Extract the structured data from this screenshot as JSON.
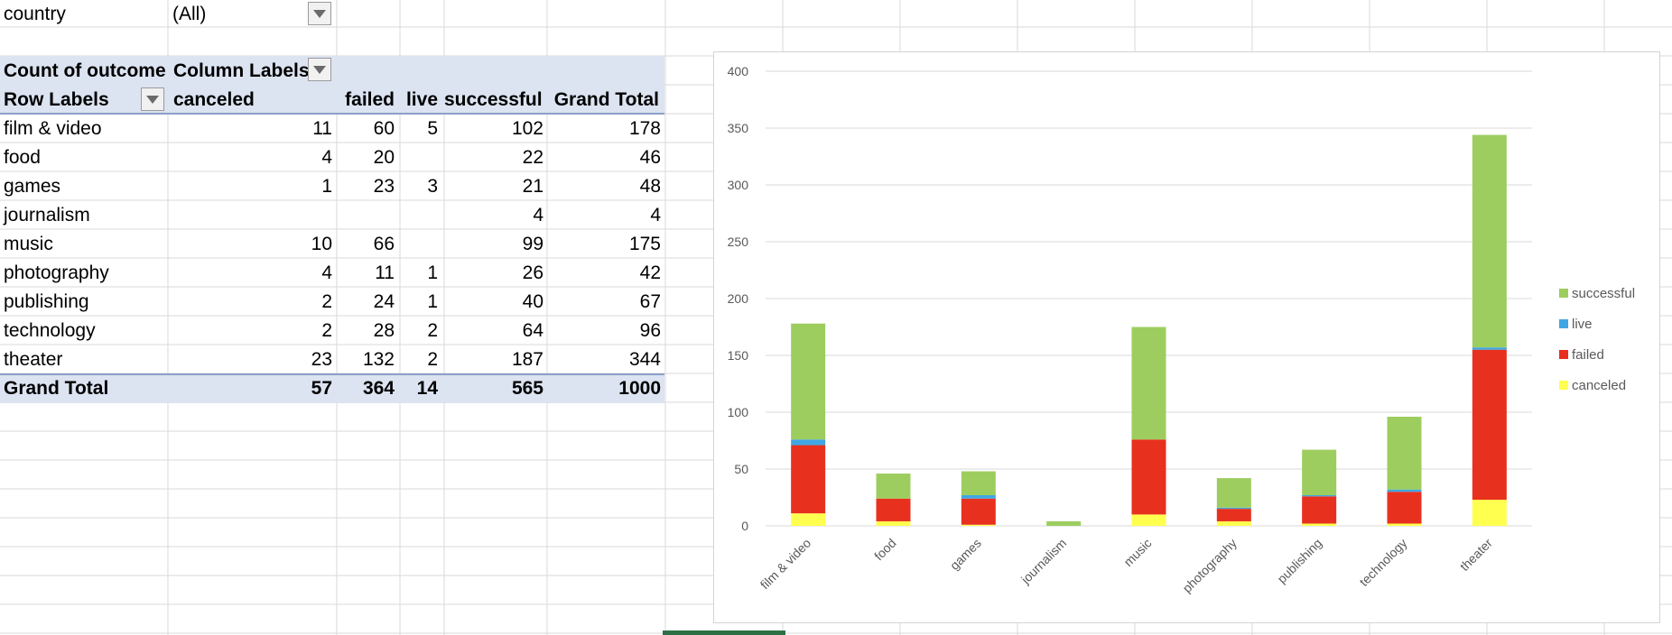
{
  "filter": {
    "label": "country",
    "value": "(All)"
  },
  "pivot": {
    "value_field": "Count of outcome",
    "column_labels": "Column Labels",
    "row_labels": "Row Labels",
    "columns": [
      "canceled",
      "failed",
      "live",
      "successful",
      "Grand Total"
    ],
    "rows": [
      {
        "label": "film & video",
        "canceled": "11",
        "failed": "60",
        "live": "5",
        "successful": "102",
        "total": "178"
      },
      {
        "label": "food",
        "canceled": "4",
        "failed": "20",
        "live": "",
        "successful": "22",
        "total": "46"
      },
      {
        "label": "games",
        "canceled": "1",
        "failed": "23",
        "live": "3",
        "successful": "21",
        "total": "48"
      },
      {
        "label": "journalism",
        "canceled": "",
        "failed": "",
        "live": "",
        "successful": "4",
        "total": "4"
      },
      {
        "label": "music",
        "canceled": "10",
        "failed": "66",
        "live": "",
        "successful": "99",
        "total": "175"
      },
      {
        "label": "photography",
        "canceled": "4",
        "failed": "11",
        "live": "1",
        "successful": "26",
        "total": "42"
      },
      {
        "label": "publishing",
        "canceled": "2",
        "failed": "24",
        "live": "1",
        "successful": "40",
        "total": "67"
      },
      {
        "label": "technology",
        "canceled": "2",
        "failed": "28",
        "live": "2",
        "successful": "64",
        "total": "96"
      },
      {
        "label": "theater",
        "canceled": "23",
        "failed": "132",
        "live": "2",
        "successful": "187",
        "total": "344"
      }
    ],
    "grand_total": {
      "label": "Grand Total",
      "canceled": "57",
      "failed": "364",
      "live": "14",
      "successful": "565",
      "total": "1000"
    }
  },
  "colors": {
    "header_band": "#dce3f1",
    "canceled": "#ffff4f",
    "failed": "#e8301f",
    "live": "#3fa6e3",
    "successful": "#9dcd5f"
  },
  "chart_data": {
    "type": "bar",
    "stacked": true,
    "categories": [
      "film & video",
      "food",
      "games",
      "journalism",
      "music",
      "photography",
      "publishing",
      "technology",
      "theater"
    ],
    "series": [
      {
        "name": "canceled",
        "values": [
          11,
          4,
          1,
          0,
          10,
          4,
          2,
          2,
          23
        ]
      },
      {
        "name": "failed",
        "values": [
          60,
          20,
          23,
          0,
          66,
          11,
          24,
          28,
          132
        ]
      },
      {
        "name": "live",
        "values": [
          5,
          0,
          3,
          0,
          0,
          1,
          1,
          2,
          2
        ]
      },
      {
        "name": "successful",
        "values": [
          102,
          22,
          21,
          4,
          99,
          26,
          40,
          64,
          187
        ]
      }
    ],
    "ylim": [
      0,
      400
    ],
    "yticks": [
      "0",
      "50",
      "100",
      "150",
      "200",
      "250",
      "300",
      "350",
      "400"
    ],
    "legend_order": [
      "successful",
      "live",
      "failed",
      "canceled"
    ],
    "legend_position": "right",
    "grid": true
  }
}
